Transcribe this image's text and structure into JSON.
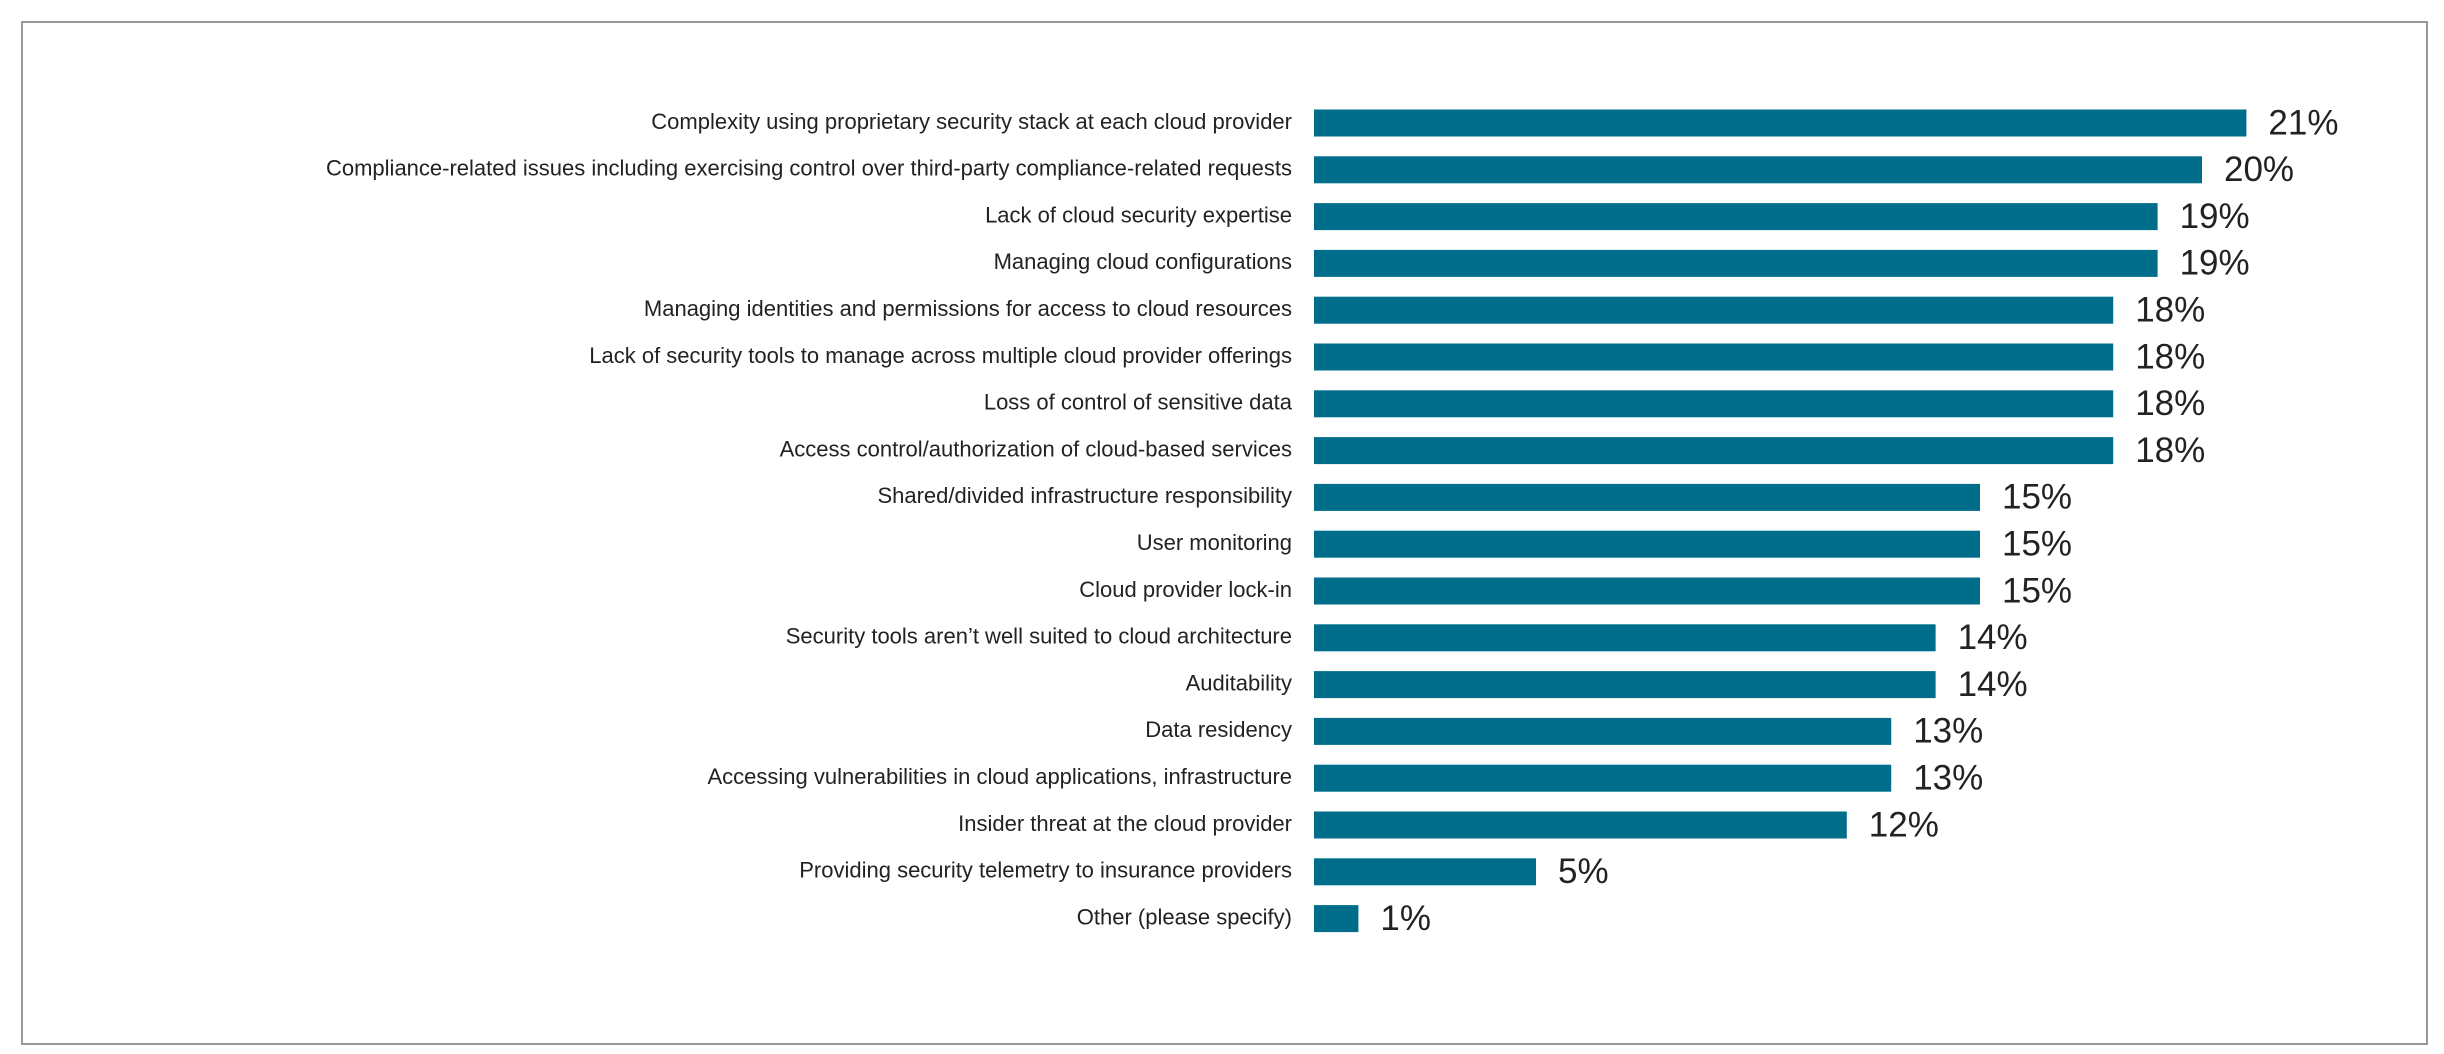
{
  "chart_data": {
    "type": "hbar",
    "categories": [
      "Complexity using proprietary security stack at each cloud provider",
      "Compliance-related issues including exercising control over third-party compliance-related requests",
      "Lack of cloud security expertise",
      "Managing cloud configurations",
      "Managing identities and permissions for access to cloud resources",
      "Lack of security tools to manage across multiple cloud provider offerings",
      "Loss of control of sensitive data",
      "Access control/authorization of cloud-based services",
      "Shared/divided infrastructure responsibility",
      "User monitoring",
      "Cloud provider lock-in",
      "Security tools aren’t well suited to cloud architecture",
      "Auditability",
      "Data residency",
      "Accessing vulnerabilities in cloud applications, infrastructure",
      "Insider threat at the cloud provider",
      "Providing security telemetry to insurance providers",
      "Other (please specify)"
    ],
    "values": [
      21,
      20,
      19,
      19,
      18,
      18,
      18,
      18,
      15,
      15,
      15,
      14,
      14,
      13,
      13,
      12,
      5,
      1
    ],
    "value_labels": [
      "21%",
      "20%",
      "19%",
      "19%",
      "18%",
      "18%",
      "18%",
      "18%",
      "15%",
      "15%",
      "15%",
      "14%",
      "14%",
      "13%",
      "13%",
      "12%",
      "5%",
      "1%"
    ],
    "color": "#006e8a"
  }
}
